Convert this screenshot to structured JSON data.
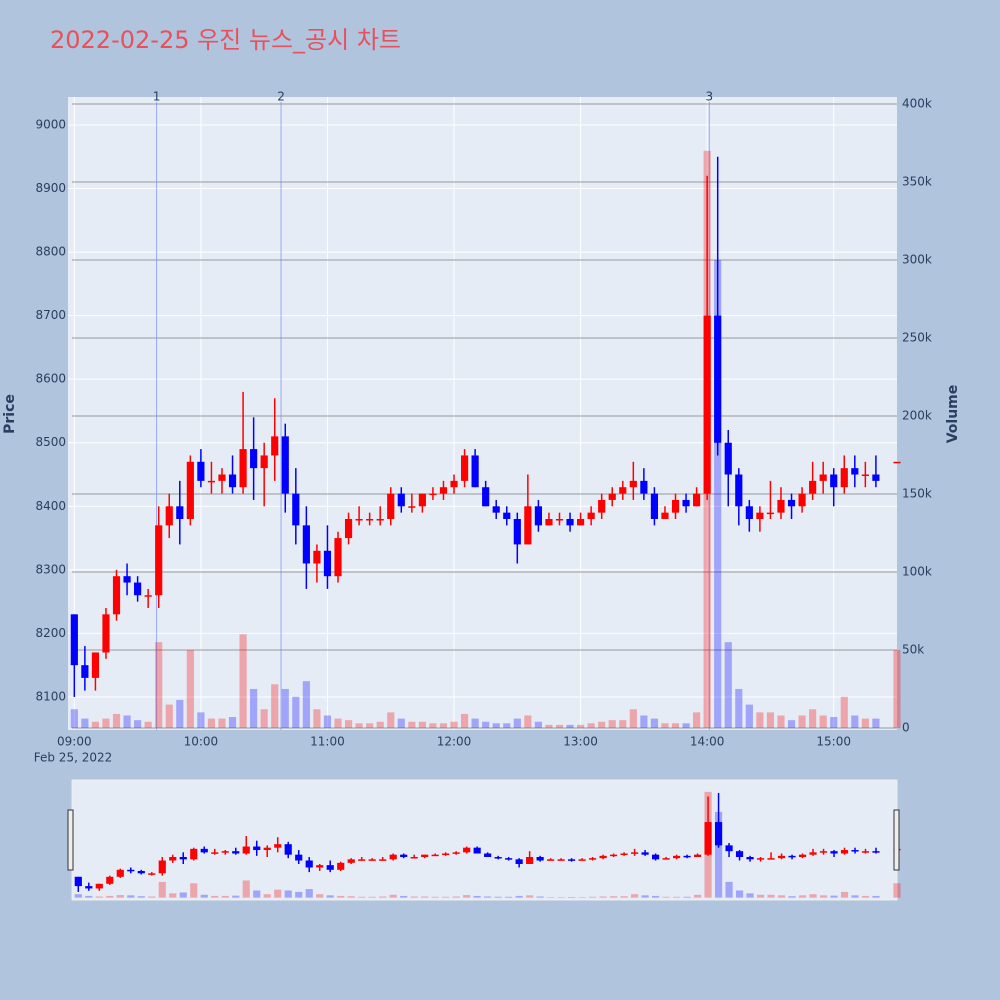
{
  "chart_data": {
    "type": "candlestick",
    "title": "2022-02-25 우진 뉴스_공시 차트",
    "y_title": "Price",
    "y2_title": "Volume",
    "date_label": "Feb 25, 2022",
    "increasing_color": "#ff0000",
    "decreasing_color": "#0000ff",
    "xlim": [
      "08:57",
      "15:30"
    ],
    "xticks": [
      "09:00",
      "10:00",
      "11:00",
      "12:00",
      "13:00",
      "14:00",
      "15:00"
    ],
    "ylim": [
      8048,
      9044
    ],
    "yticks": [
      8100,
      8200,
      8300,
      8400,
      8500,
      8600,
      8700,
      8800,
      8900,
      9000
    ],
    "y2lim": [
      -1300,
      404500
    ],
    "y2ticks": [
      0,
      {
        "value": 50000,
        "label": "50k"
      },
      {
        "value": 100000,
        "label": "100k"
      },
      {
        "value": 150000,
        "label": "150k"
      },
      {
        "value": 200000,
        "label": "200k"
      },
      {
        "value": 250000,
        "label": "250k"
      },
      {
        "value": 300000,
        "label": "300k"
      },
      {
        "value": 350000,
        "label": "350k"
      },
      {
        "value": 400000,
        "label": "400k"
      }
    ],
    "markers": [
      {
        "label": "1",
        "x": "09:39"
      },
      {
        "label": "2",
        "x": "10:38"
      },
      {
        "label": "3",
        "x": "14:01"
      }
    ],
    "x": [
      "09:00",
      "09:05",
      "09:10",
      "09:15",
      "09:20",
      "09:25",
      "09:30",
      "09:35",
      "09:40",
      "09:45",
      "09:50",
      "09:55",
      "10:00",
      "10:05",
      "10:10",
      "10:15",
      "10:20",
      "10:25",
      "10:30",
      "10:35",
      "10:40",
      "10:45",
      "10:50",
      "10:55",
      "11:00",
      "11:05",
      "11:10",
      "11:15",
      "11:20",
      "11:25",
      "11:30",
      "11:35",
      "11:40",
      "11:45",
      "11:50",
      "11:55",
      "12:00",
      "12:05",
      "12:10",
      "12:15",
      "12:20",
      "12:25",
      "12:30",
      "12:35",
      "12:40",
      "12:45",
      "12:50",
      "12:55",
      "13:00",
      "13:05",
      "13:10",
      "13:15",
      "13:20",
      "13:25",
      "13:30",
      "13:35",
      "13:40",
      "13:45",
      "13:50",
      "13:55",
      "14:00",
      "14:05",
      "14:10",
      "14:15",
      "14:20",
      "14:25",
      "14:30",
      "14:35",
      "14:40",
      "14:45",
      "14:50",
      "14:55",
      "15:00",
      "15:05",
      "15:10",
      "15:15",
      "15:20",
      "15:30"
    ],
    "open": [
      8230,
      8150,
      8130,
      8170,
      8230,
      8290,
      8280,
      8260,
      8260,
      8370,
      8400,
      8380,
      8470,
      8440,
      8440,
      8450,
      8430,
      8490,
      8460,
      8480,
      8510,
      8420,
      8370,
      8310,
      8330,
      8290,
      8350,
      8380,
      8380,
      8380,
      8380,
      8420,
      8400,
      8400,
      8420,
      8420,
      8430,
      8440,
      8480,
      8430,
      8400,
      8390,
      8380,
      8340,
      8400,
      8370,
      8380,
      8380,
      8370,
      8380,
      8390,
      8410,
      8420,
      8430,
      8440,
      8420,
      8380,
      8390,
      8410,
      8400,
      8420,
      8700,
      8500,
      8450,
      8400,
      8380,
      8390,
      8390,
      8410,
      8400,
      8420,
      8440,
      8450,
      8430,
      8460,
      8450,
      8450,
      8470
    ],
    "high": [
      8230,
      8180,
      8170,
      8240,
      8300,
      8310,
      8290,
      8270,
      8400,
      8420,
      8440,
      8480,
      8490,
      8470,
      8460,
      8480,
      8580,
      8540,
      8500,
      8570,
      8530,
      8460,
      8400,
      8340,
      8370,
      8360,
      8390,
      8400,
      8390,
      8400,
      8430,
      8430,
      8420,
      8420,
      8430,
      8440,
      8450,
      8490,
      8490,
      8440,
      8410,
      8400,
      8390,
      8450,
      8410,
      8390,
      8390,
      8390,
      8390,
      8400,
      8420,
      8430,
      8440,
      8470,
      8460,
      8430,
      8400,
      8420,
      8420,
      8430,
      8920,
      8950,
      8520,
      8460,
      8410,
      8400,
      8440,
      8430,
      8420,
      8430,
      8470,
      8470,
      8460,
      8480,
      8480,
      8470,
      8480,
      8470
    ],
    "low": [
      8100,
      8110,
      8110,
      8160,
      8220,
      8260,
      8250,
      8240,
      8240,
      8350,
      8340,
      8370,
      8430,
      8420,
      8420,
      8420,
      8420,
      8410,
      8400,
      8440,
      8390,
      8340,
      8270,
      8280,
      8270,
      8280,
      8340,
      8370,
      8370,
      8370,
      8370,
      8390,
      8390,
      8390,
      8410,
      8410,
      8420,
      8430,
      8430,
      8400,
      8380,
      8370,
      8310,
      8340,
      8360,
      8370,
      8370,
      8360,
      8370,
      8370,
      8380,
      8400,
      8410,
      8410,
      8410,
      8370,
      8380,
      8380,
      8390,
      8400,
      8410,
      8480,
      8400,
      8370,
      8360,
      8360,
      8380,
      8380,
      8380,
      8390,
      8410,
      8420,
      8400,
      8420,
      8430,
      8430,
      8430,
      8470
    ],
    "close": [
      8150,
      8130,
      8170,
      8230,
      8290,
      8280,
      8260,
      8260,
      8370,
      8400,
      8380,
      8470,
      8440,
      8440,
      8450,
      8430,
      8490,
      8460,
      8480,
      8510,
      8420,
      8370,
      8310,
      8330,
      8290,
      8350,
      8380,
      8380,
      8380,
      8380,
      8420,
      8400,
      8400,
      8420,
      8420,
      8430,
      8440,
      8480,
      8430,
      8400,
      8390,
      8380,
      8340,
      8400,
      8370,
      8380,
      8380,
      8370,
      8380,
      8390,
      8410,
      8420,
      8430,
      8440,
      8420,
      8380,
      8390,
      8410,
      8400,
      8420,
      8700,
      8500,
      8450,
      8400,
      8380,
      8390,
      8390,
      8410,
      8400,
      8420,
      8440,
      8450,
      8430,
      8460,
      8450,
      8450,
      8440,
      8470
    ],
    "volume": [
      12000,
      6000,
      4000,
      6000,
      9000,
      8000,
      5000,
      4000,
      55000,
      15000,
      18000,
      50000,
      10000,
      6000,
      6000,
      7000,
      60000,
      25000,
      12000,
      28000,
      25000,
      20000,
      30000,
      12000,
      8000,
      6000,
      5000,
      3000,
      3000,
      4000,
      10000,
      6000,
      4000,
      4000,
      3000,
      3000,
      4000,
      9000,
      6000,
      4000,
      3000,
      3000,
      6000,
      8000,
      4000,
      2000,
      2000,
      2000,
      2000,
      3000,
      4000,
      5000,
      5000,
      12000,
      8000,
      6000,
      3000,
      3000,
      3000,
      10000,
      370000,
      300000,
      55000,
      25000,
      15000,
      10000,
      10000,
      8000,
      5000,
      8000,
      12000,
      8000,
      7000,
      20000,
      8000,
      6000,
      6000,
      50000
    ]
  }
}
